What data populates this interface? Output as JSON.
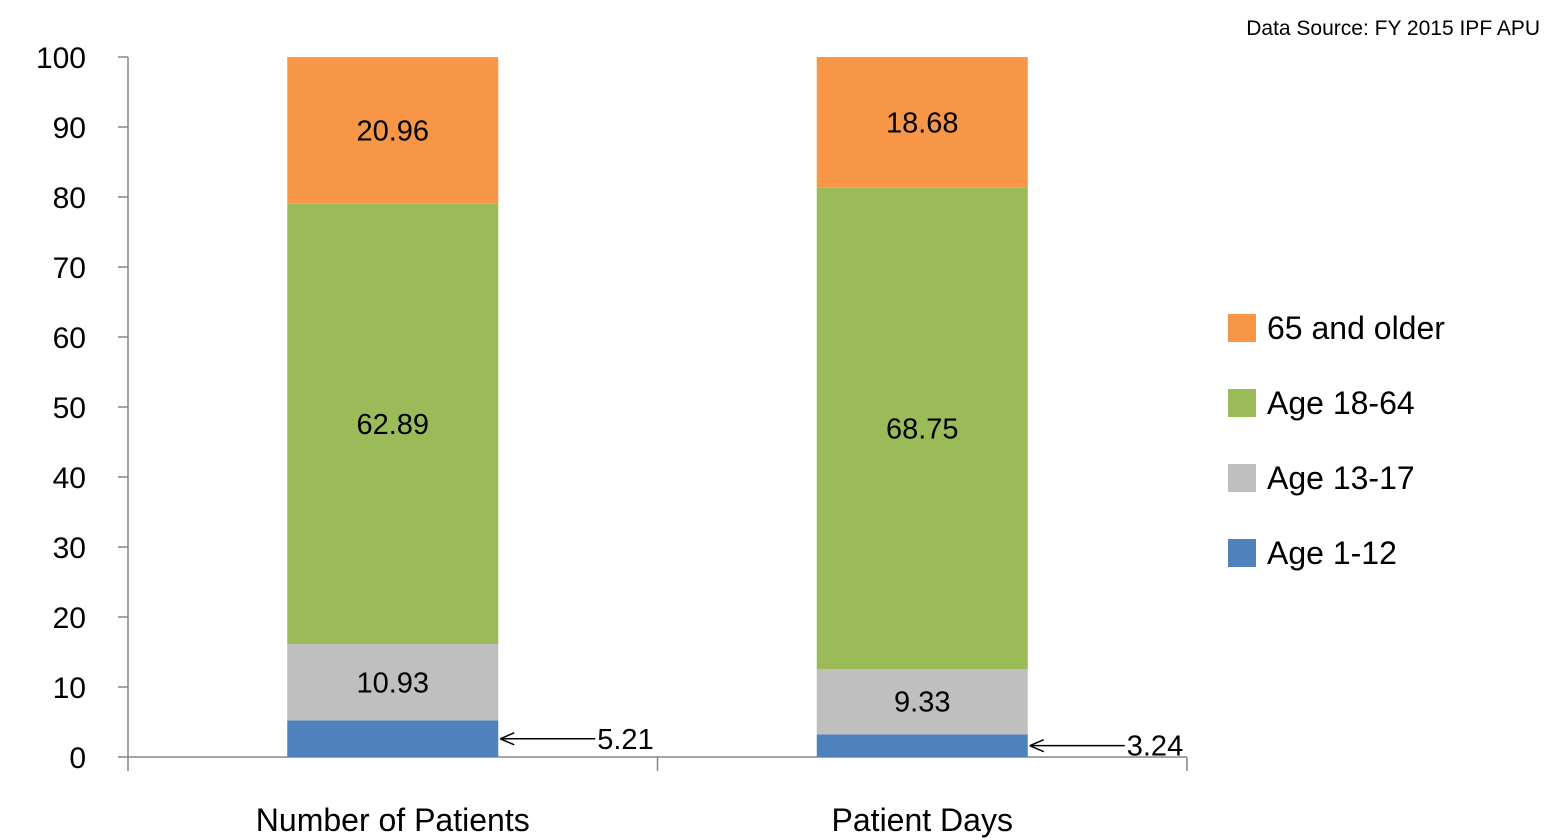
{
  "source_note": "Data Source: FY 2015 IPF APU",
  "chart_data": {
    "type": "bar",
    "stacked": true,
    "title": "",
    "xlabel": "",
    "ylabel": "",
    "ylim": [
      0,
      100
    ],
    "yticks": [
      0,
      10,
      20,
      30,
      40,
      50,
      60,
      70,
      80,
      90,
      100
    ],
    "grid": false,
    "legend_position": "right",
    "categories": [
      "Number of Patients",
      "Patient Days"
    ],
    "series": [
      {
        "name": "Age 1-12",
        "values": [
          5.21,
          3.24
        ],
        "labels": [
          "5.21",
          "3.24"
        ],
        "color": "#4F81BD",
        "label_style": "callout-arrow"
      },
      {
        "name": "Age 13-17",
        "values": [
          10.93,
          9.33
        ],
        "labels": [
          "10.93",
          "9.33"
        ],
        "color": "#BFBFBF",
        "label_style": "inside"
      },
      {
        "name": "Age 18-64",
        "values": [
          62.89,
          68.75
        ],
        "labels": [
          "62.89",
          "68.75"
        ],
        "color": "#9BBB59",
        "label_style": "inside"
      },
      {
        "name": "65 and older",
        "values": [
          20.96,
          18.68
        ],
        "labels": [
          "20.96",
          "18.68"
        ],
        "color": "#F79646",
        "label_style": "inside"
      }
    ],
    "legend_order": [
      "65 and older",
      "Age 18-64",
      "Age 13-17",
      "Age 1-12"
    ]
  }
}
